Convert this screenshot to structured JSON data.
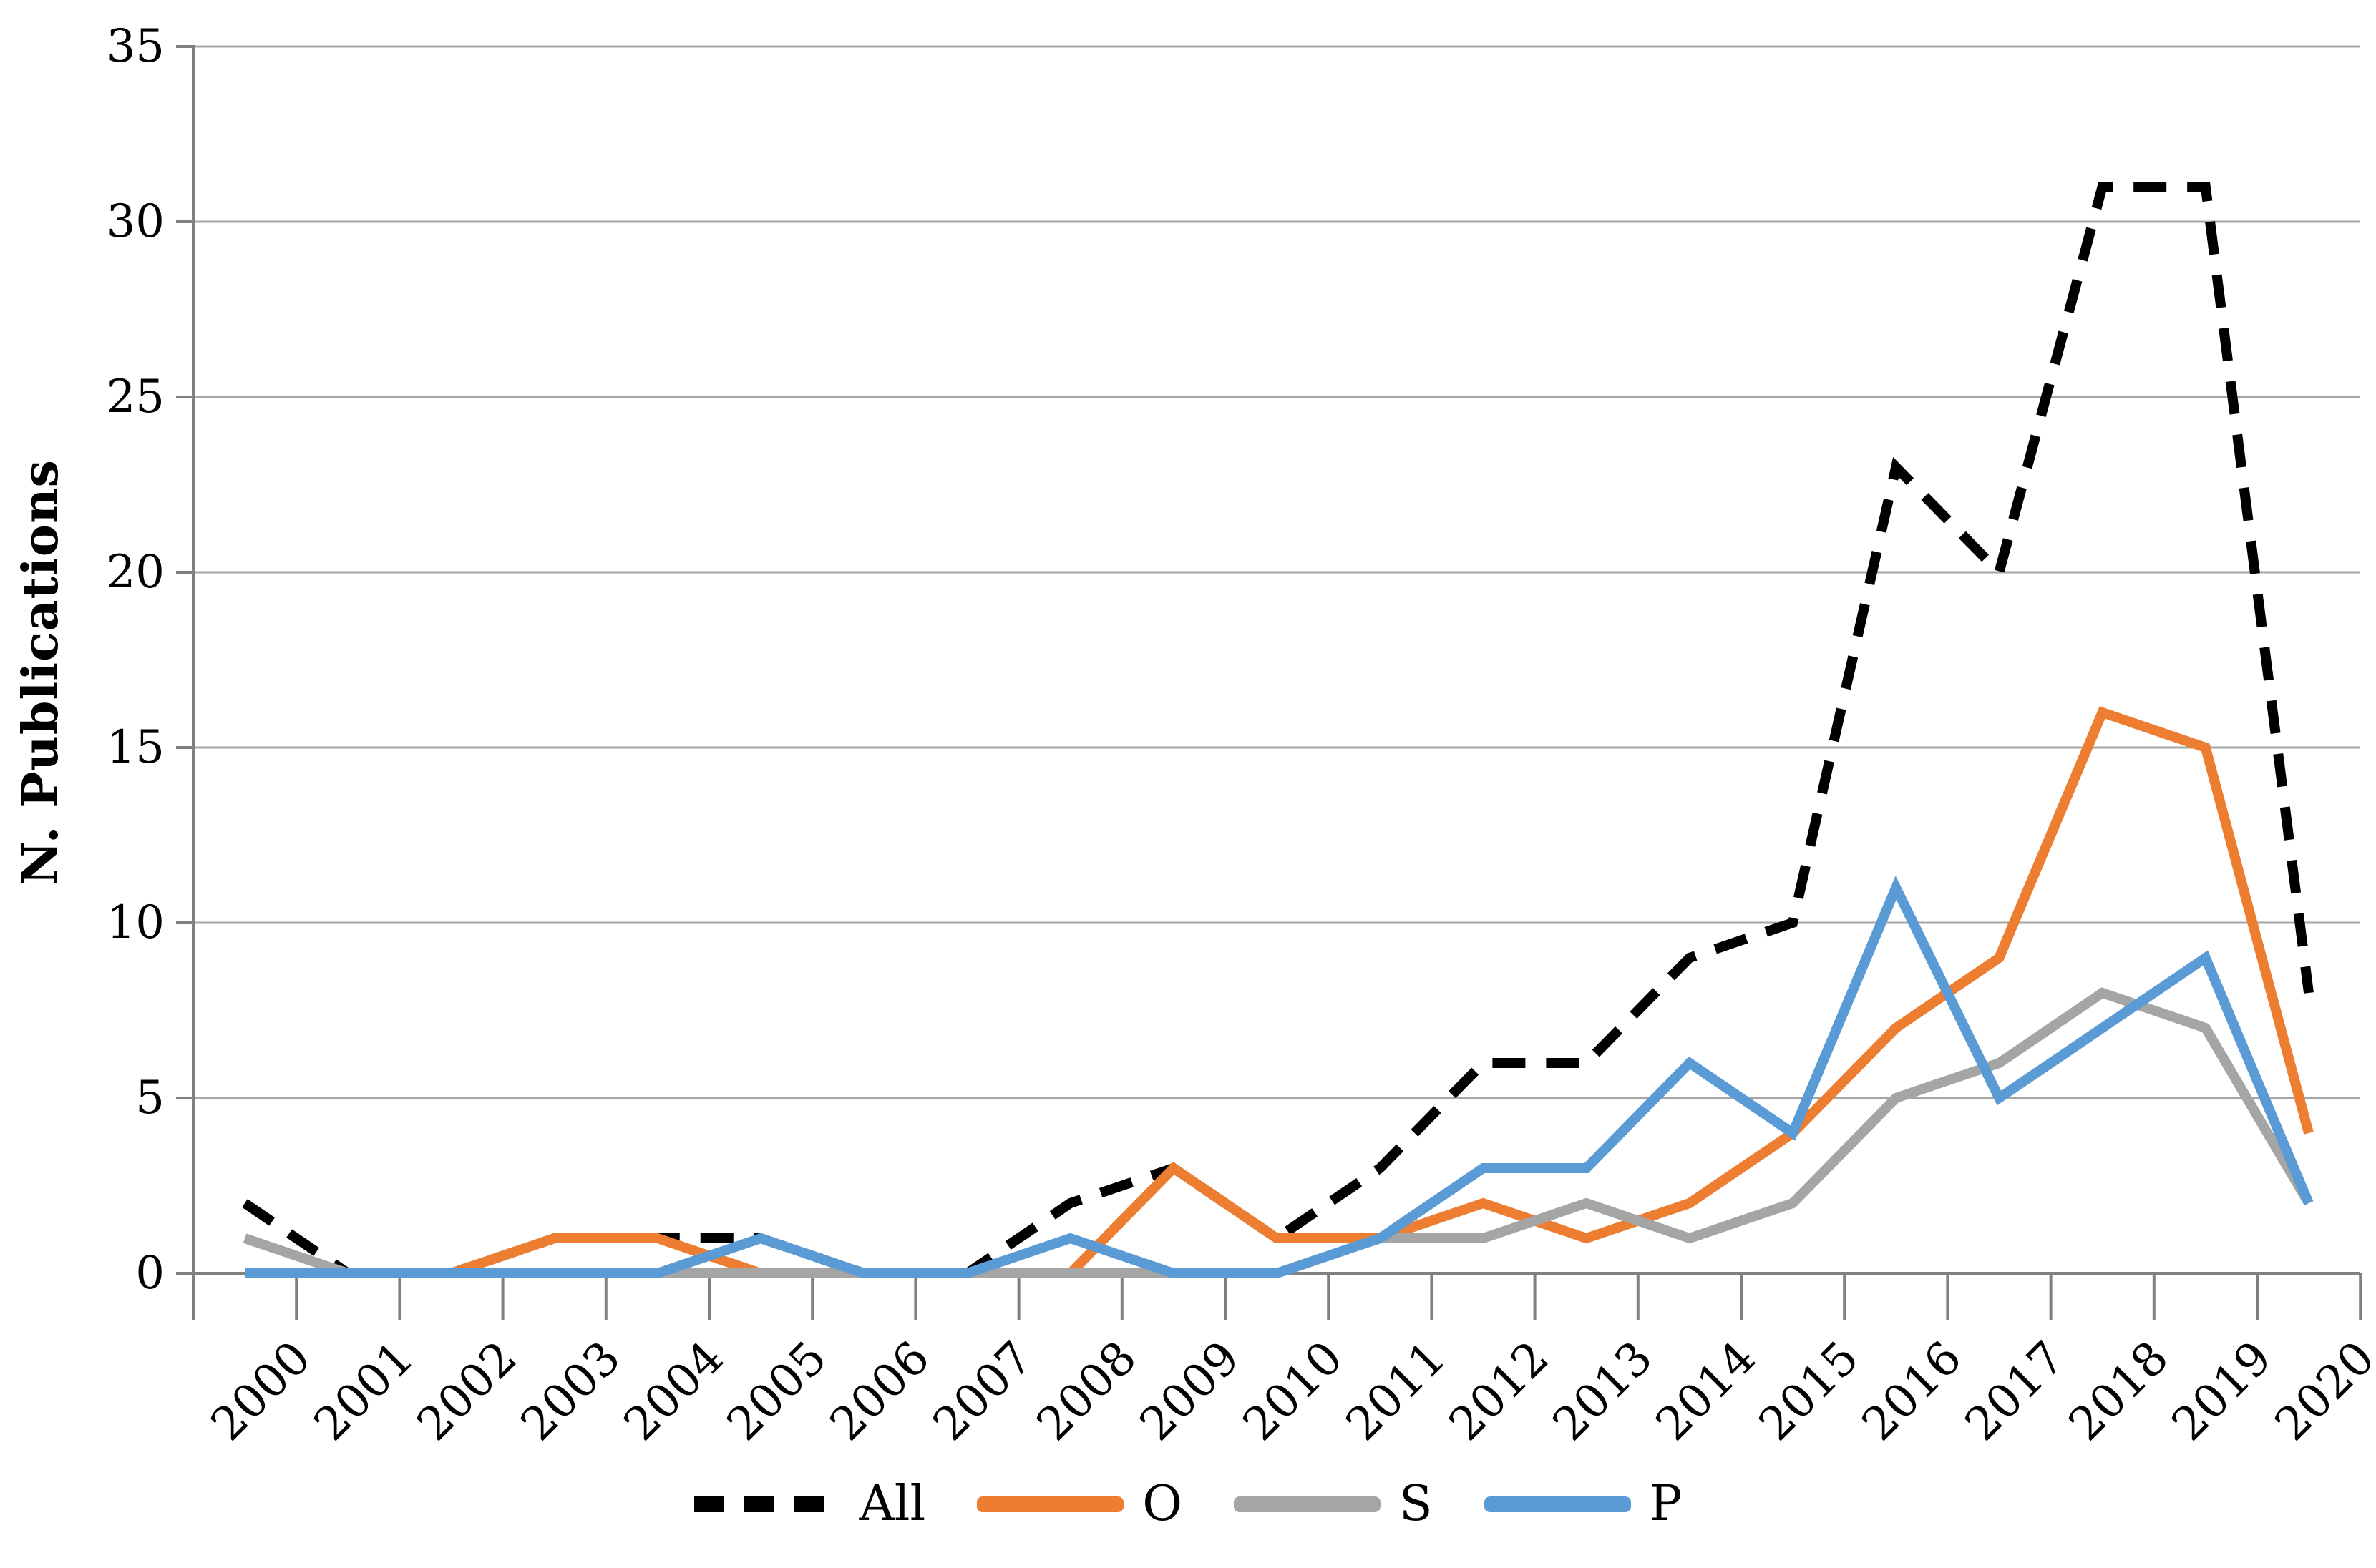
{
  "chart_data": {
    "type": "line",
    "title": "",
    "xlabel": "",
    "ylabel": "N. Publications",
    "ylim": [
      0,
      35
    ],
    "yticks": [
      0,
      5,
      10,
      15,
      20,
      25,
      30,
      35
    ],
    "grid": true,
    "legend_position": "bottom",
    "categories": [
      "2000",
      "2001",
      "2002",
      "2003",
      "2004",
      "2005",
      "2006",
      "2007",
      "2008",
      "2009",
      "2010",
      "2011",
      "2012",
      "2013",
      "2014",
      "2015",
      "2016",
      "2017",
      "2018",
      "2019",
      "2020"
    ],
    "series": [
      {
        "name": "All",
        "color": "#000000",
        "style": "dashed",
        "values": [
          2,
          0,
          0,
          1,
          1,
          1,
          0,
          0,
          2,
          3,
          1,
          3,
          6,
          6,
          9,
          10,
          23,
          20,
          31,
          31,
          8
        ]
      },
      {
        "name": "O",
        "color": "#ED7D31",
        "style": "solid",
        "values": [
          0,
          0,
          0,
          1,
          1,
          0,
          0,
          0,
          0,
          3,
          1,
          1,
          2,
          1,
          2,
          4,
          7,
          9,
          16,
          15,
          4
        ]
      },
      {
        "name": "S",
        "color": "#A5A5A5",
        "style": "solid",
        "values": [
          1,
          0,
          0,
          0,
          0,
          0,
          0,
          0,
          0,
          0,
          0,
          1,
          1,
          2,
          1,
          2,
          5,
          6,
          8,
          7,
          2
        ]
      },
      {
        "name": "P",
        "color": "#5B9BD5",
        "style": "solid",
        "values": [
          0,
          0,
          0,
          0,
          0,
          1,
          0,
          0,
          1,
          0,
          0,
          1,
          3,
          3,
          6,
          4,
          11,
          5,
          7,
          9,
          2
        ]
      }
    ],
    "colors": {
      "gridline": "#a6a6a6",
      "axis": "#808080",
      "text": "#000000"
    }
  }
}
